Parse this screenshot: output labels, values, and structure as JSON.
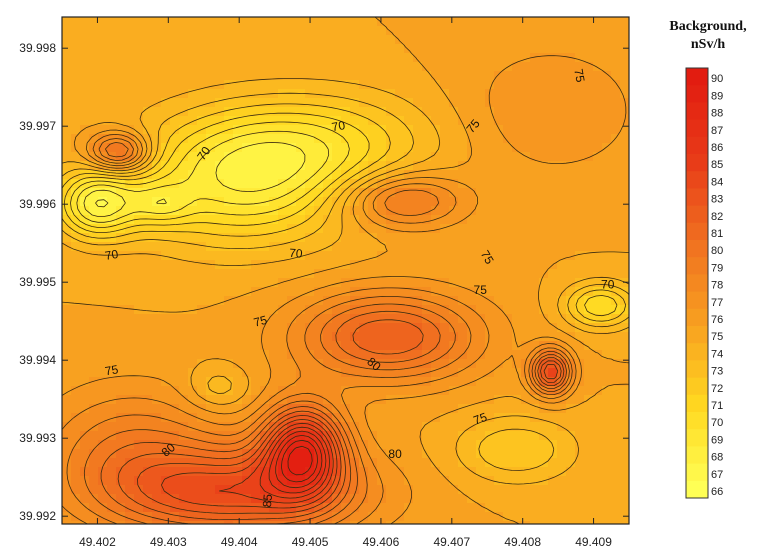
{
  "chart_data": {
    "type": "contour",
    "xlim": [
      49.4015,
      49.4095
    ],
    "ylim": [
      39.9919,
      39.9984
    ],
    "x_ticks": [
      "49.402",
      "49.403",
      "49.404",
      "49.405",
      "49.406",
      "49.407",
      "49.408",
      "49.409"
    ],
    "y_ticks": [
      "39.998",
      "39.997",
      "39.996",
      "39.995",
      "39.994",
      "39.993",
      "39.992"
    ],
    "x_tick_values": [
      49.402,
      49.403,
      49.404,
      49.405,
      49.406,
      49.407,
      49.408,
      49.409
    ],
    "y_tick_values": [
      39.998,
      39.997,
      39.996,
      39.995,
      39.994,
      39.993,
      39.992
    ],
    "colorbar": {
      "title_line1": "Background,",
      "title_line2": "nSv/h",
      "levels": [
        "90",
        "89",
        "88",
        "87",
        "86",
        "85",
        "84",
        "83",
        "82",
        "81",
        "80",
        "79",
        "78",
        "77",
        "76",
        "75",
        "74",
        "73",
        "72",
        "71",
        "70",
        "69",
        "68",
        "67",
        "66"
      ],
      "min": 66,
      "max": 90,
      "colors": [
        "#ffff55",
        "#ffd820",
        "#f8a020",
        "#f07020",
        "#e83a18",
        "#e21c10"
      ]
    },
    "background_level": 75,
    "field_features": [
      {
        "x": 49.404,
        "y": 39.99625,
        "amp": -6,
        "sx": 0.0011,
        "sy": 0.00055
      },
      {
        "x": 49.405,
        "y": 39.9968,
        "amp": -4,
        "sx": 0.0012,
        "sy": 0.00045
      },
      {
        "x": 49.402,
        "y": 39.996,
        "amp": -7,
        "sx": 0.0004,
        "sy": 0.0003
      },
      {
        "x": 49.4029,
        "y": 39.996,
        "amp": -3,
        "sx": 0.0003,
        "sy": 0.0002
      },
      {
        "x": 49.4023,
        "y": 39.99667,
        "amp": 7,
        "sx": 0.0003,
        "sy": 0.00018
      },
      {
        "x": 49.4063,
        "y": 39.99605,
        "amp": 5,
        "sx": 0.0006,
        "sy": 0.00025
      },
      {
        "x": 49.4061,
        "y": 39.9943,
        "amp": 7,
        "sx": 0.0009,
        "sy": 0.0004
      },
      {
        "x": 49.4049,
        "y": 39.99285,
        "amp": 12,
        "sx": 0.0004,
        "sy": 0.0004
      },
      {
        "x": 49.404,
        "y": 39.9923,
        "amp": 8,
        "sx": 0.0012,
        "sy": 0.0004
      },
      {
        "x": 49.4084,
        "y": 39.99385,
        "amp": 9,
        "sx": 0.0002,
        "sy": 0.0002
      },
      {
        "x": 49.4091,
        "y": 39.9947,
        "amp": -5,
        "sx": 0.00035,
        "sy": 0.0002
      },
      {
        "x": 49.4079,
        "y": 39.99285,
        "amp": -3,
        "sx": 0.0006,
        "sy": 0.0003
      },
      {
        "x": 49.4037,
        "y": 39.99365,
        "amp": -2,
        "sx": 0.0003,
        "sy": 0.0002
      },
      {
        "x": 49.4025,
        "y": 39.9928,
        "amp": 4,
        "sx": 0.0009,
        "sy": 0.0006
      },
      {
        "x": 49.4084,
        "y": 39.9972,
        "amp": 2,
        "sx": 0.0009,
        "sy": 0.0006
      }
    ],
    "contour_labels": [
      {
        "text": "70",
        "x": 49.4035,
        "y": 39.99665,
        "angle": -55
      },
      {
        "text": "70",
        "x": 49.4054,
        "y": 39.997,
        "angle": -10
      },
      {
        "text": "75",
        "x": 49.4073,
        "y": 39.997,
        "angle": -50
      },
      {
        "text": "75",
        "x": 49.4088,
        "y": 39.99765,
        "angle": 80
      },
      {
        "text": "70",
        "x": 49.4022,
        "y": 39.99535,
        "angle": -10
      },
      {
        "text": "70",
        "x": 49.4048,
        "y": 39.99537,
        "angle": 5
      },
      {
        "text": "75",
        "x": 49.4075,
        "y": 39.99532,
        "angle": 60
      },
      {
        "text": "75",
        "x": 49.4074,
        "y": 39.9949,
        "angle": 0
      },
      {
        "text": "70",
        "x": 49.4092,
        "y": 39.99497,
        "angle": 0
      },
      {
        "text": "75",
        "x": 49.4043,
        "y": 39.9945,
        "angle": -15
      },
      {
        "text": "80",
        "x": 49.4059,
        "y": 39.99395,
        "angle": 40
      },
      {
        "text": "75",
        "x": 49.4022,
        "y": 39.99387,
        "angle": -10
      },
      {
        "text": "75",
        "x": 49.4074,
        "y": 39.99325,
        "angle": -20
      },
      {
        "text": "80",
        "x": 49.403,
        "y": 39.99285,
        "angle": -40
      },
      {
        "text": "80",
        "x": 49.4062,
        "y": 39.9928,
        "angle": 0
      },
      {
        "text": "85",
        "x": 49.4044,
        "y": 39.9922,
        "angle": -85
      }
    ]
  }
}
